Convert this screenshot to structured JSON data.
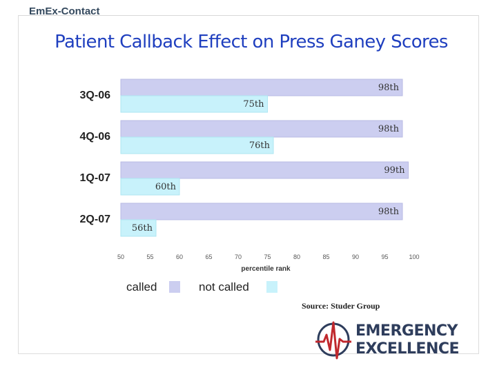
{
  "brand": "EmEx-Contact",
  "title": "Patient Callback Effect on Press Ganey Scores",
  "source": "Source: Studer Group",
  "logo": {
    "line1": "EMERGENCY",
    "line2": "EXCELLENCE"
  },
  "colors": {
    "called": "#cccef0",
    "not_called": "#c8f2fb",
    "title": "#1f3fbf"
  },
  "chart_data": {
    "type": "bar",
    "orientation": "horizontal",
    "categories": [
      "3Q-06",
      "4Q-06",
      "1Q-07",
      "2Q-07"
    ],
    "series": [
      {
        "name": "called",
        "values": [
          98,
          98,
          99,
          98
        ],
        "labels": [
          "98th",
          "98th",
          "99th",
          "98th"
        ]
      },
      {
        "name": "not called",
        "values": [
          75,
          76,
          60,
          56
        ],
        "labels": [
          "75th",
          "76th",
          "60th",
          "56th"
        ]
      }
    ],
    "xlabel": "percentile rank",
    "xlim": [
      50,
      100
    ],
    "xticks": [
      50,
      55,
      60,
      65,
      70,
      75,
      80,
      85,
      90,
      95,
      100
    ],
    "legend": "bottom",
    "grid": false
  }
}
